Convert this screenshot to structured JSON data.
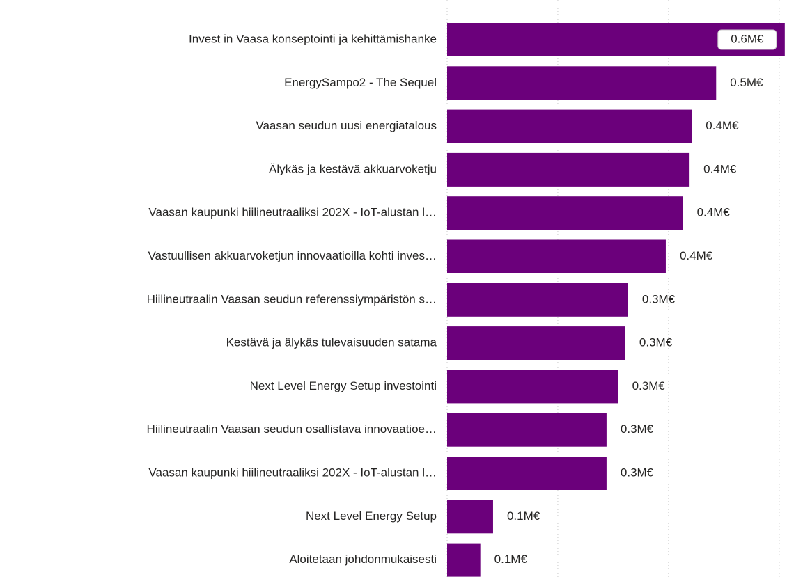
{
  "chart_data": {
    "type": "bar",
    "orientation": "horizontal",
    "color": "#6b007b",
    "categories": [
      "Invest in Vaasa konseptointi ja kehittämishanke",
      "EnergySampo2 - The Sequel",
      "Vaasan seudun uusi energiatalous",
      "Älykäs ja kestävä akkuarvoketju",
      "Vaasan kaupunki hiilineutraaliksi 202X - IoT-alustan l…",
      "Vastuullisen akkuarvoketjun innovaatioilla kohti inves…",
      "Hiilineutraalin Vaasan seudun referenssiympäristön s…",
      "Kestävä ja älykäs tulevaisuuden satama",
      "Next Level Energy Setup investointi",
      "Hiilineutraalin Vaasan seudun osallistava innovaatioe…",
      "Vaasan kaupunki hiilineutraaliksi 202X - IoT-alustan l…",
      "Next Level Energy Setup",
      "Aloitetaan johdonmukaisesti"
    ],
    "values": [
      0.61,
      0.486,
      0.442,
      0.438,
      0.426,
      0.395,
      0.327,
      0.322,
      0.309,
      0.288,
      0.288,
      0.083,
      0.06
    ],
    "value_labels": [
      "0.6M€",
      "0.5M€",
      "0.4M€",
      "0.4M€",
      "0.4M€",
      "0.4M€",
      "0.3M€",
      "0.3M€",
      "0.3M€",
      "0.3M€",
      "0.3M€",
      "0.1M€",
      "0.1M€"
    ],
    "xlim": [
      0,
      0.614
    ],
    "xticks": [
      0,
      0.2,
      0.4,
      0.6
    ],
    "grid": true
  }
}
